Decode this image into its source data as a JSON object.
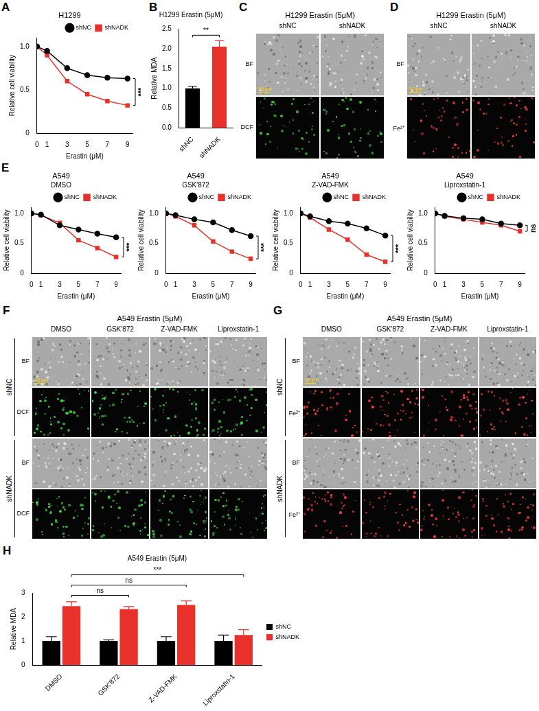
{
  "chart_data": [
    {
      "panel": "A",
      "type": "line",
      "title": "H1299",
      "x_label": "Erastin (μM)",
      "y_label": "Relative cell viability",
      "x": [
        0,
        1,
        3,
        5,
        7,
        9
      ],
      "series": [
        {
          "name": "shNC",
          "color": "#000000",
          "marker": "circle",
          "values": [
            1.0,
            0.95,
            0.75,
            0.67,
            0.64,
            0.63
          ]
        },
        {
          "name": "shNADK",
          "color": "#e8312a",
          "marker": "square",
          "values": [
            1.0,
            0.9,
            0.6,
            0.45,
            0.37,
            0.32
          ]
        }
      ],
      "xlim": [
        0,
        9.5
      ],
      "xticks": [
        0,
        1,
        3,
        5,
        7,
        9
      ],
      "ylim": [
        0,
        1.1
      ],
      "yticks": [
        0,
        0.5,
        {
          "value": 1,
          "label": "1.0"
        }
      ],
      "grid": false,
      "legend": "top",
      "significance": "***"
    },
    {
      "panel": "B",
      "type": "bar",
      "title": "H1299 Erastin (5μM)",
      "y_label": "Relative MDA",
      "categories": [
        "shNC",
        "shNADK"
      ],
      "values": [
        1.0,
        2.05
      ],
      "errors": [
        0.05,
        0.15
      ],
      "colors": [
        "#000000",
        "#e8312a"
      ],
      "ylim": [
        0,
        2.5
      ],
      "yticks": [
        {
          "value": 0,
          "label": "0.0"
        },
        0.5,
        {
          "value": 1,
          "label": "1.0"
        },
        1.5,
        {
          "value": 2,
          "label": "2.0"
        },
        2.5
      ],
      "grid": false,
      "comparisons": [
        {
          "between": [
            "shNC",
            "shNADK"
          ],
          "label": "**"
        }
      ]
    },
    {
      "panel": "E",
      "type": "line",
      "title": "A549",
      "subtitle": "DMSO",
      "x_label": "Erastin (μM)",
      "y_label": "Relative cell viability",
      "x": [
        0,
        1,
        3,
        5,
        7,
        9
      ],
      "series": [
        {
          "name": "shNC",
          "color": "#000000",
          "marker": "circle",
          "values": [
            1.0,
            0.98,
            0.8,
            0.73,
            0.66,
            0.6
          ]
        },
        {
          "name": "shNADK",
          "color": "#e8312a",
          "marker": "square",
          "values": [
            1.0,
            0.97,
            0.84,
            0.55,
            0.42,
            0.27
          ]
        }
      ],
      "xlim": [
        0,
        9.5
      ],
      "xticks": [
        0,
        1,
        3,
        5,
        7,
        9
      ],
      "ylim": [
        0,
        1.1
      ],
      "yticks": [
        0,
        0.5,
        {
          "value": 1,
          "label": "1.0"
        }
      ],
      "grid": false,
      "legend": "top",
      "significance": "***"
    },
    {
      "type": "line",
      "title": "A549",
      "subtitle": "GSK'872",
      "x_label": "Erastin (μM)",
      "y_label": "Relative cell viability",
      "x": [
        0,
        1,
        3,
        5,
        7,
        9
      ],
      "series": [
        {
          "name": "shNC",
          "color": "#000000",
          "marker": "circle",
          "values": [
            1.0,
            0.97,
            0.9,
            0.85,
            0.72,
            0.62
          ]
        },
        {
          "name": "shNADK",
          "color": "#e8312a",
          "marker": "square",
          "values": [
            1.0,
            0.95,
            0.8,
            0.53,
            0.36,
            0.24
          ]
        }
      ],
      "xlim": [
        0,
        9.5
      ],
      "xticks": [
        0,
        1,
        3,
        5,
        7,
        9
      ],
      "ylim": [
        0,
        1.1
      ],
      "yticks": [
        0,
        0.5,
        {
          "value": 1,
          "label": "1.0"
        }
      ],
      "grid": false,
      "legend": "top",
      "significance": "***"
    },
    {
      "type": "line",
      "title": "A549",
      "subtitle": "Z-VAD-FMK",
      "x_label": "Erastin (μM)",
      "y_label": "Relative cell viability",
      "x": [
        0,
        1,
        3,
        5,
        7,
        9
      ],
      "series": [
        {
          "name": "shNC",
          "color": "#000000",
          "marker": "circle",
          "values": [
            1.0,
            0.95,
            0.87,
            0.83,
            0.75,
            0.63
          ]
        },
        {
          "name": "shNADK",
          "color": "#e8312a",
          "marker": "square",
          "values": [
            1.0,
            0.93,
            0.73,
            0.56,
            0.31,
            0.19
          ]
        }
      ],
      "xlim": [
        0,
        9.5
      ],
      "xticks": [
        0,
        1,
        3,
        5,
        7,
        9
      ],
      "ylim": [
        0,
        1.1
      ],
      "yticks": [
        0,
        0.5,
        {
          "value": 1,
          "label": "1.0"
        }
      ],
      "grid": false,
      "legend": "top",
      "significance": "***"
    },
    {
      "type": "line",
      "title": "A549",
      "subtitle": "Liproxstatin-1",
      "x_label": "Erastin (μM)",
      "y_label": "Relative cell viability",
      "x": [
        0,
        1,
        3,
        5,
        7,
        9
      ],
      "series": [
        {
          "name": "shNC",
          "color": "#000000",
          "marker": "circle",
          "values": [
            1.0,
            0.96,
            0.92,
            0.9,
            0.83,
            0.8
          ]
        },
        {
          "name": "shNADK",
          "color": "#e8312a",
          "marker": "square",
          "values": [
            1.0,
            0.95,
            0.9,
            0.85,
            0.8,
            0.7
          ]
        }
      ],
      "xlim": [
        0,
        9.5
      ],
      "xticks": [
        0,
        1,
        3,
        5,
        7,
        9
      ],
      "ylim": [
        0,
        1.1
      ],
      "yticks": [
        0,
        0.5,
        {
          "value": 1,
          "label": "1.0"
        }
      ],
      "grid": false,
      "legend": "top",
      "significance": "ns"
    },
    {
      "panel": "H",
      "type": "bar",
      "title": "A549 Erastin (5μM)",
      "y_label": "Relative MDA",
      "categories": [
        "DMSO",
        "GSK'872",
        "Z-VAD-FMK",
        "Liproxstatin-1"
      ],
      "series": [
        {
          "name": "shNC",
          "color": "#000000",
          "values": [
            1.0,
            1.0,
            1.0,
            1.0
          ],
          "errors": [
            0.18,
            0.05,
            0.18,
            0.25
          ]
        },
        {
          "name": "shNADK",
          "color": "#e8312a",
          "values": [
            2.45,
            2.33,
            2.5,
            1.25
          ],
          "errors": [
            0.18,
            0.1,
            0.17,
            0.22
          ]
        }
      ],
      "ylim": [
        0,
        3
      ],
      "yticks": [
        0,
        1,
        2,
        3
      ],
      "grid": false,
      "legend": "right",
      "comparisons": [
        {
          "between": [
            "DMSO",
            "GSK'872"
          ],
          "series": "shNADK",
          "label": "ns"
        },
        {
          "between": [
            "DMSO",
            "Z-VAD-FMK"
          ],
          "series": "shNADK",
          "label": "ns"
        },
        {
          "between": [
            "DMSO",
            "Liproxstatin-1"
          ],
          "series": "shNADK",
          "label": "***"
        }
      ]
    }
  ],
  "image_panels": [
    {
      "panel": "C",
      "title": "H1299  Erastin (5μM)",
      "columns": [
        "shNC",
        "shNADK"
      ],
      "rows": [
        {
          "label": "BF"
        },
        {
          "label": "DCF",
          "color": "#3ddc3d"
        }
      ],
      "scale_bar": "50 μm"
    },
    {
      "panel": "D",
      "title": "H1299  Erastin (5μM)",
      "columns": [
        "shNC",
        "shNADK"
      ],
      "rows": [
        {
          "label": "BF"
        },
        {
          "label": "Fe²⁺",
          "color": "#ff3a3a"
        }
      ],
      "scale_bar": "50 μm"
    },
    {
      "panel": "F",
      "title": "A549 Erastin (5μM)",
      "columns": [
        "DMSO",
        "GSK'872",
        "Z-VAD-FMK",
        "Liproxstatin-1"
      ],
      "groups": [
        {
          "name": "shNC",
          "rows": [
            {
              "label": "BF"
            },
            {
              "label": "DCF",
              "color": "#3ddc3d"
            }
          ]
        },
        {
          "name": "shNADK",
          "rows": [
            {
              "label": "BF"
            },
            {
              "label": "DCF",
              "color": "#3ddc3d"
            }
          ]
        }
      ],
      "scale_bar": "50 μm"
    },
    {
      "panel": "G",
      "title": "A549 Erastin (5μM)",
      "columns": [
        "DMSO",
        "GSK'872",
        "Z-VAD-FMK",
        "Liproxstatin-1"
      ],
      "groups": [
        {
          "name": "shNC",
          "rows": [
            {
              "label": "BF"
            },
            {
              "label": "Fe²⁺",
              "color": "#ff3a3a"
            }
          ]
        },
        {
          "name": "shNADK",
          "rows": [
            {
              "label": "BF"
            },
            {
              "label": "Fe²⁺",
              "color": "#ff3a3a"
            }
          ]
        }
      ],
      "scale_bar": "50 μm"
    }
  ]
}
